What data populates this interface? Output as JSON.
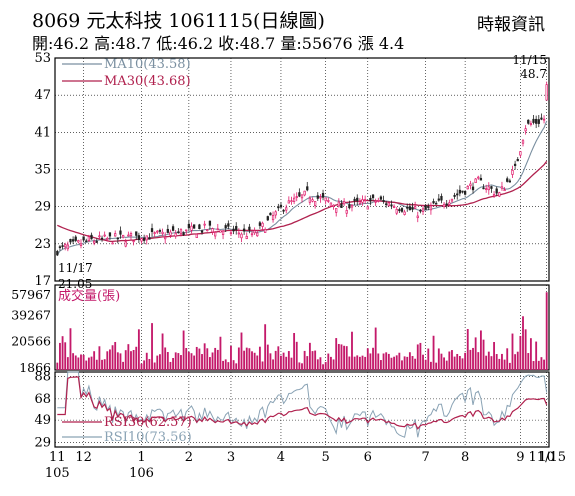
{
  "header": {
    "title": "8069 元太科技 1061115(日線圖)",
    "source": "時報資訊",
    "stats": "開:46.2 高:48.7 低:46.2 收:48.7 量:55676 漲 4.4"
  },
  "colors": {
    "candle_up": "#e0196a",
    "candle_down": "#222222",
    "ma10": "#7a8fa0",
    "ma30": "#b0214e",
    "volume": "#c4196a",
    "rsi30": "#b0214e",
    "rsi10": "#8aa3b5",
    "grid": "#000000"
  },
  "chart_data": [
    {
      "type": "candlestick",
      "panel": "price",
      "ylim": [
        17,
        53
      ],
      "yticks": [
        "53",
        "47",
        "41",
        "35",
        "29",
        "23",
        "17"
      ],
      "legend": [
        {
          "name": "MA10",
          "label": "MA10(43.58)",
          "color": "#7a8fa0"
        },
        {
          "name": "MA30",
          "label": "MA30(43.68)",
          "color": "#b0214e"
        }
      ],
      "annotations": {
        "high_date": "11/15",
        "high_value": "48.7",
        "low_date": "11/17",
        "low_value": "21.05"
      },
      "days_per_period": [
        10,
        22,
        18,
        16,
        19,
        17,
        16,
        22,
        15,
        21,
        10
      ]
    },
    {
      "type": "bar",
      "panel": "volume",
      "title": "成交量(張)",
      "yticks": [
        "57967",
        "39267",
        "20566",
        "1866"
      ],
      "ylim": [
        1866,
        57967
      ],
      "last_value": 55676
    },
    {
      "type": "line",
      "panel": "rsi",
      "yticks": [
        "88",
        "68",
        "49",
        "29"
      ],
      "ylim": [
        25,
        92
      ],
      "series": [
        {
          "name": "RSI30",
          "label": "RSI30(62.57)",
          "color": "#b0214e"
        },
        {
          "name": "RSI10",
          "label": "RSI10(73.56)",
          "color": "#8aa3b5"
        }
      ],
      "x_labels": [
        {
          "text": "11",
          "sub": "105"
        },
        {
          "text": "12",
          "sub": ""
        },
        {
          "text": "1",
          "sub": "106"
        },
        {
          "text": "2",
          "sub": ""
        },
        {
          "text": "3",
          "sub": ""
        },
        {
          "text": "4",
          "sub": ""
        },
        {
          "text": "5",
          "sub": ""
        },
        {
          "text": "6",
          "sub": ""
        },
        {
          "text": "7",
          "sub": ""
        },
        {
          "text": "8",
          "sub": ""
        },
        {
          "text": "9",
          "sub": ""
        },
        {
          "text": "10",
          "sub": ""
        },
        {
          "text": "11/15",
          "sub": ""
        }
      ]
    }
  ]
}
